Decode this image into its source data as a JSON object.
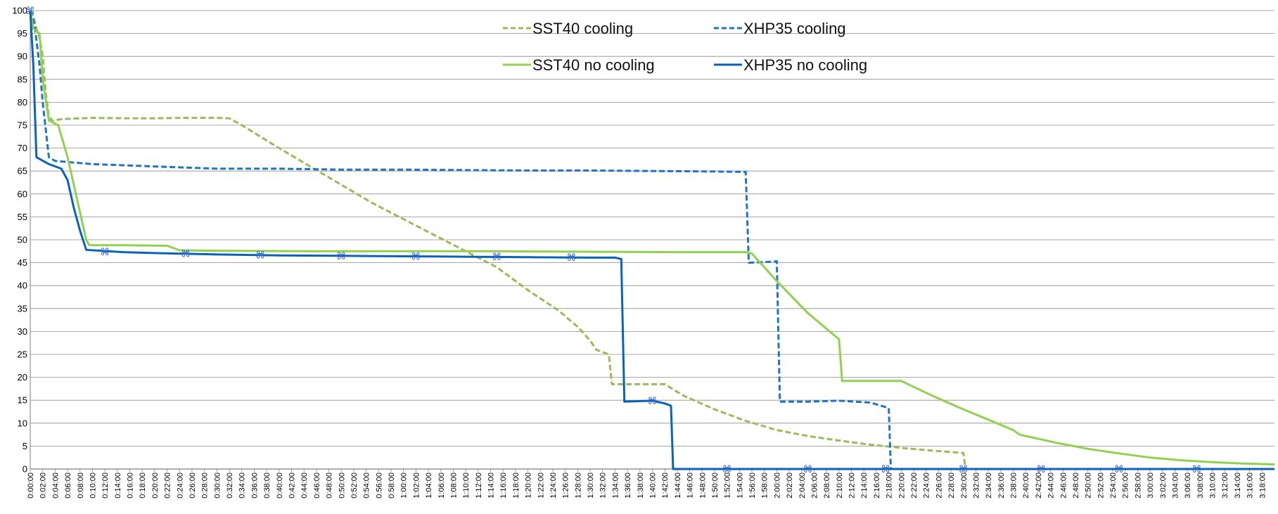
{
  "chart_data": {
    "type": "line",
    "title": "",
    "xlabel": "",
    "ylabel": "",
    "ylim": [
      0,
      100
    ],
    "xlim": [
      "0:00:00",
      "3:20:00"
    ],
    "y_ticks": [
      0,
      5,
      10,
      15,
      20,
      25,
      30,
      35,
      40,
      45,
      50,
      55,
      60,
      65,
      70,
      75,
      80,
      85,
      90,
      95,
      100
    ],
    "x_tick_step_minutes": 2,
    "x_tick_last": "3:18:00",
    "grid": {
      "horizontal": true,
      "vertical": false
    },
    "legend_position": "top-center",
    "series": [
      {
        "name": "SST40 cooling",
        "color": "#9bbb59",
        "dash": "dashed",
        "points": [
          [
            "0:00:00",
            100
          ],
          [
            "0:00:30",
            99
          ],
          [
            "0:01:00",
            96
          ],
          [
            "0:01:30",
            94
          ],
          [
            "0:02:00",
            90
          ],
          [
            "0:02:30",
            82
          ],
          [
            "0:03:00",
            77
          ],
          [
            "0:03:30",
            76
          ],
          [
            "0:05:00",
            76.3
          ],
          [
            "0:10:00",
            76.6
          ],
          [
            "0:15:00",
            76.5
          ],
          [
            "0:20:00",
            76.5
          ],
          [
            "0:25:00",
            76.6
          ],
          [
            "0:30:00",
            76.6
          ],
          [
            "0:32:00",
            76.5
          ],
          [
            "0:34:00",
            75
          ],
          [
            "0:40:00",
            70
          ],
          [
            "0:45:00",
            66
          ],
          [
            "0:50:00",
            62
          ],
          [
            "0:55:00",
            58
          ],
          [
            "1:00:00",
            54.5
          ],
          [
            "1:05:00",
            51
          ],
          [
            "1:10:00",
            47.5
          ],
          [
            "1:15:00",
            44
          ],
          [
            "1:20:00",
            39
          ],
          [
            "1:25:00",
            34.5
          ],
          [
            "1:28:00",
            31
          ],
          [
            "1:30:00",
            28
          ],
          [
            "1:31:00",
            26
          ],
          [
            "1:33:00",
            25
          ],
          [
            "1:33:30",
            18.5
          ],
          [
            "1:42:00",
            18.5
          ],
          [
            "1:45:00",
            16
          ],
          [
            "1:50:00",
            13
          ],
          [
            "1:55:00",
            10.5
          ],
          [
            "2:00:00",
            8.5
          ],
          [
            "2:05:00",
            7.2
          ],
          [
            "2:10:00",
            6.2
          ],
          [
            "2:15:00",
            5.3
          ],
          [
            "2:20:00",
            4.6
          ],
          [
            "2:25:00",
            4.0
          ],
          [
            "2:30:00",
            3.5
          ],
          [
            "2:30:20",
            0
          ]
        ]
      },
      {
        "name": "XHP35  cooling",
        "color": "#1f74c4",
        "dash": "dashed",
        "points": [
          [
            "0:00:00",
            100
          ],
          [
            "0:00:40",
            97
          ],
          [
            "0:01:30",
            88
          ],
          [
            "0:02:00",
            80
          ],
          [
            "0:03:00",
            68
          ],
          [
            "0:04:00",
            67.2
          ],
          [
            "0:10:00",
            66.5
          ],
          [
            "0:20:00",
            66
          ],
          [
            "0:30:00",
            65.5
          ],
          [
            "0:40:00",
            65.5
          ],
          [
            "0:50:00",
            65.3
          ],
          [
            "1:00:00",
            65.3
          ],
          [
            "1:10:00",
            65.2
          ],
          [
            "1:20:00",
            65.1
          ],
          [
            "1:30:00",
            65.1
          ],
          [
            "1:40:00",
            65
          ],
          [
            "1:50:00",
            64.9
          ],
          [
            "1:55:00",
            64.8
          ],
          [
            "1:55:30",
            45
          ],
          [
            "1:59:00",
            45.2
          ],
          [
            "2:00:00",
            45.3
          ],
          [
            "2:00:30",
            14.7
          ],
          [
            "2:05:00",
            14.7
          ],
          [
            "2:10:00",
            14.9
          ],
          [
            "2:15:00",
            14.5
          ],
          [
            "2:18:00",
            13.3
          ],
          [
            "2:18:20",
            0
          ],
          [
            "3:20:00",
            0
          ]
        ]
      },
      {
        "name": "SST40 no cooling",
        "color": "#92d050",
        "dash": "solid",
        "points": [
          [
            "0:00:00",
            100
          ],
          [
            "0:00:30",
            96
          ],
          [
            "0:01:30",
            95
          ],
          [
            "0:02:00",
            85
          ],
          [
            "0:03:00",
            76
          ],
          [
            "0:04:30",
            75
          ],
          [
            "0:06:00",
            68
          ],
          [
            "0:08:00",
            56
          ],
          [
            "0:09:00",
            50
          ],
          [
            "0:09:30",
            48.8
          ],
          [
            "0:15:00",
            48.8
          ],
          [
            "0:22:00",
            48.7
          ],
          [
            "0:24:00",
            47.7
          ],
          [
            "0:30:00",
            47.6
          ],
          [
            "0:45:00",
            47.5
          ],
          [
            "1:00:00",
            47.5
          ],
          [
            "1:15:00",
            47.5
          ],
          [
            "1:30:00",
            47.4
          ],
          [
            "1:45:00",
            47.3
          ],
          [
            "1:55:00",
            47.3
          ],
          [
            "1:56:00",
            47
          ],
          [
            "2:00:00",
            41
          ],
          [
            "2:05:00",
            34
          ],
          [
            "2:10:00",
            28.3
          ],
          [
            "2:10:30",
            19.2
          ],
          [
            "2:16:00",
            19.2
          ],
          [
            "2:20:00",
            19.2
          ],
          [
            "2:25:00",
            16
          ],
          [
            "2:30:00",
            13
          ],
          [
            "2:35:00",
            10.2
          ],
          [
            "2:38:00",
            8.5
          ],
          [
            "2:39:00",
            7.5
          ],
          [
            "2:45:00",
            5.7
          ],
          [
            "2:50:00",
            4.4
          ],
          [
            "2:55:00",
            3.4
          ],
          [
            "3:00:00",
            2.5
          ],
          [
            "3:05:00",
            1.9
          ],
          [
            "3:10:00",
            1.5
          ],
          [
            "3:15:00",
            1.2
          ],
          [
            "3:20:00",
            1.0
          ]
        ]
      },
      {
        "name": "XHP35 no cooling",
        "color": "#0a63b8",
        "dash": "solid",
        "points": [
          [
            "0:00:00",
            100
          ],
          [
            "0:00:30",
            88
          ],
          [
            "0:01:00",
            68
          ],
          [
            "0:03:00",
            66.5
          ],
          [
            "0:05:00",
            65.5
          ],
          [
            "0:06:00",
            63
          ],
          [
            "0:07:00",
            57
          ],
          [
            "0:08:00",
            52
          ],
          [
            "0:09:00",
            47.8
          ],
          [
            "0:15:00",
            47.3
          ],
          [
            "0:20:00",
            47.1
          ],
          [
            "0:30:00",
            46.8
          ],
          [
            "0:40:00",
            46.6
          ],
          [
            "0:50:00",
            46.5
          ],
          [
            "1:00:00",
            46.4
          ],
          [
            "1:10:00",
            46.3
          ],
          [
            "1:20:00",
            46.2
          ],
          [
            "1:30:00",
            46.1
          ],
          [
            "1:34:00",
            46.1
          ],
          [
            "1:35:00",
            45.8
          ],
          [
            "1:35:30",
            14.7
          ],
          [
            "1:40:00",
            14.9
          ],
          [
            "1:42:00",
            14.3
          ],
          [
            "1:43:00",
            13.8
          ],
          [
            "1:43:20",
            0
          ],
          [
            "3:20:00",
            0
          ]
        ]
      }
    ],
    "markers": {
      "symbol": "⌘",
      "color": "#3d6cc9",
      "points": [
        [
          "0:00:00",
          100
        ],
        [
          "0:12:00",
          47.4
        ],
        [
          "0:25:00",
          47.0
        ],
        [
          "0:37:00",
          46.7
        ],
        [
          "0:50:00",
          46.5
        ],
        [
          "1:02:00",
          46.4
        ],
        [
          "1:15:00",
          46.3
        ],
        [
          "1:27:00",
          46.2
        ],
        [
          "1:40:00",
          14.9
        ],
        [
          "1:52:00",
          0
        ],
        [
          "2:05:00",
          0
        ],
        [
          "2:17:30",
          0
        ],
        [
          "2:30:00",
          0
        ],
        [
          "2:42:30",
          0
        ],
        [
          "2:55:00",
          0
        ],
        [
          "3:07:30",
          0
        ]
      ]
    }
  }
}
